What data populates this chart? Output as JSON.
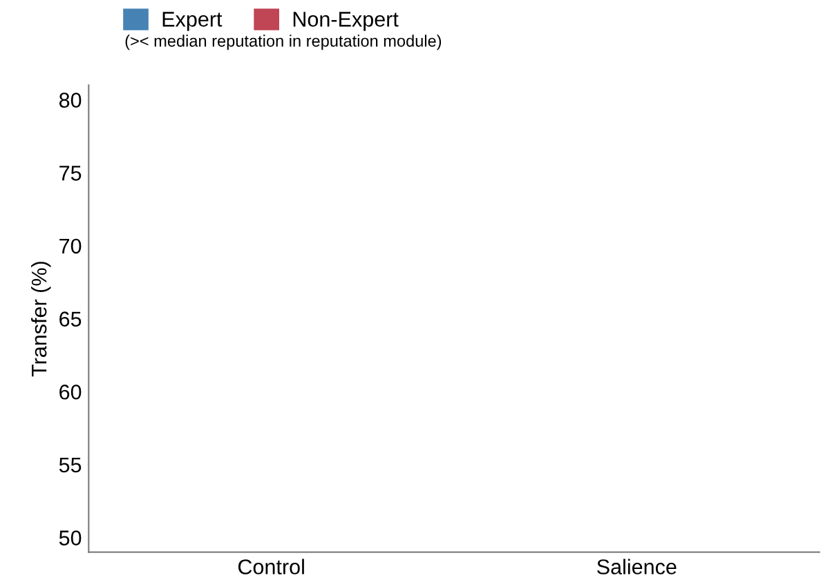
{
  "chart_data": {
    "type": "bar",
    "ylabel": "Transfer (%)",
    "legend_title": "(>< median reputation in reputation module)",
    "categories": [
      "Control",
      "Salience"
    ],
    "series": [
      {
        "name": "Expert",
        "color": "#4682b4",
        "values": [
          null,
          null
        ]
      },
      {
        "name": "Non-Expert",
        "color": "#c04555",
        "values": [
          null,
          null
        ]
      }
    ],
    "ylim": [
      49,
      81
    ],
    "yticks": [
      50,
      55,
      60,
      65,
      70,
      75,
      80
    ],
    "grid": false,
    "legend": "top"
  }
}
